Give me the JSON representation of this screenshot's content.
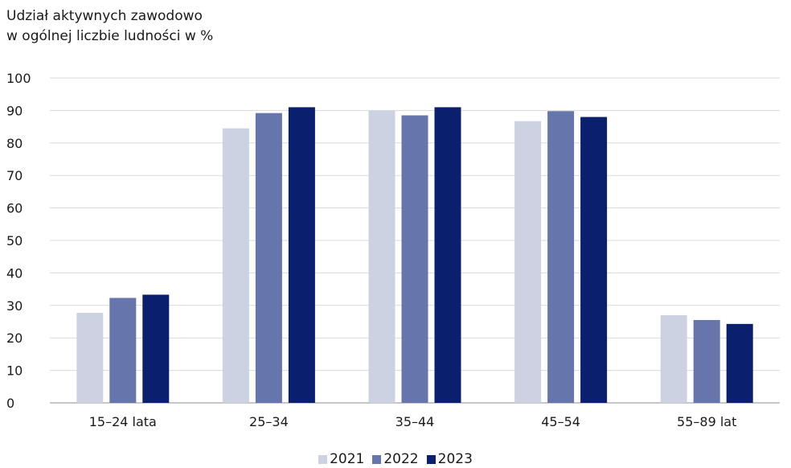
{
  "chart_data": {
    "type": "bar",
    "title_lines": [
      "Udział aktywnych zawodowo",
      "w ogólnej liczbie ludności w %"
    ],
    "categories": [
      "15–24 lata",
      "25–34",
      "35–44",
      "45–54",
      "55–89 lat"
    ],
    "series": [
      {
        "name": "2021",
        "color": "#cdd2e3",
        "values": [
          27.7,
          84.5,
          90.0,
          86.7,
          27.0
        ]
      },
      {
        "name": "2022",
        "color": "#6675ab",
        "values": [
          32.3,
          89.2,
          88.5,
          89.8,
          25.5
        ]
      },
      {
        "name": "2023",
        "color": "#0b1f6f",
        "values": [
          33.3,
          91.0,
          91.0,
          88.0,
          24.3
        ]
      }
    ],
    "ylim": [
      0,
      100
    ],
    "yticks": [
      0,
      10,
      20,
      30,
      40,
      50,
      60,
      70,
      80,
      90,
      100
    ],
    "grid": true,
    "legend_position": "bottom"
  }
}
